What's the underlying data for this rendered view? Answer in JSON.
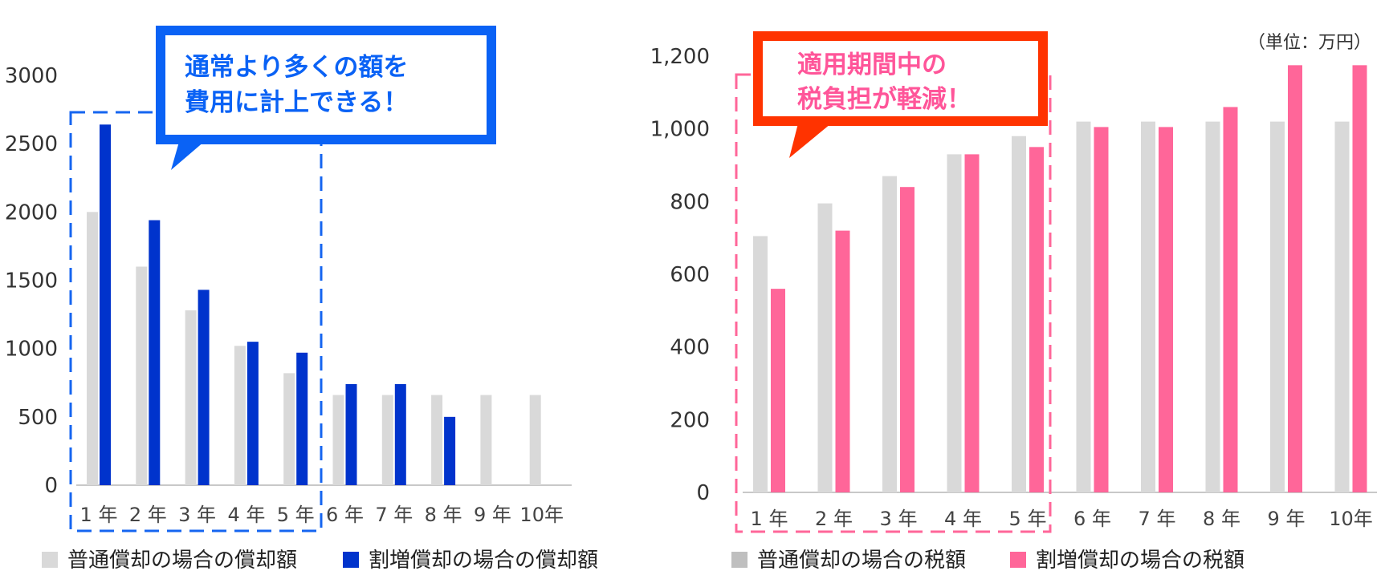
{
  "chart_data": [
    {
      "type": "bar",
      "categories": [
        "1 年",
        "2 年",
        "3 年",
        "4 年",
        "5 年",
        "6 年",
        "7 年",
        "8 年",
        "9 年",
        "10年"
      ],
      "series": [
        {
          "name": "普通償却の場合の償却額",
          "color": "#d9d9d9",
          "values": [
            2000,
            1600,
            1280,
            1020,
            820,
            660,
            660,
            660,
            660,
            660
          ]
        },
        {
          "name": "割増償却の場合の償却額",
          "color": "#0033cc",
          "values": [
            2640,
            1940,
            1430,
            1050,
            970,
            740,
            740,
            500,
            0,
            0
          ]
        }
      ],
      "ylim": [
        0,
        3000
      ],
      "yticks": [
        "0",
        "500",
        "1000",
        "1500",
        "2000",
        "2500",
        "3000"
      ],
      "ytick_values": [
        0,
        500,
        1000,
        1500,
        2000,
        2500,
        3000
      ],
      "grid": false,
      "legend_position": "bottom",
      "callout": {
        "lines": [
          "通常より多くの額を",
          "費用に計上できる！"
        ],
        "color": "#0a62f5"
      }
    },
    {
      "type": "bar",
      "categories": [
        "1 年",
        "2 年",
        "3 年",
        "4 年",
        "5 年",
        "6 年",
        "7 年",
        "8 年",
        "9 年",
        "10年"
      ],
      "series": [
        {
          "name": "普通償却の場合の税額",
          "color": "#d9d9d9",
          "values": [
            705,
            795,
            870,
            930,
            980,
            1020,
            1020,
            1020,
            1020,
            1020
          ]
        },
        {
          "name": "割増償却の場合の税額",
          "color": "#ff6699",
          "values": [
            560,
            720,
            840,
            930,
            950,
            1005,
            1005,
            1060,
            1175,
            1175
          ]
        }
      ],
      "ylim": [
        0,
        1200
      ],
      "yticks": [
        "0",
        "200",
        "400",
        "600",
        "800",
        "1,000",
        "1,200"
      ],
      "ytick_values": [
        0,
        200,
        400,
        600,
        800,
        1000,
        1200
      ],
      "grid": false,
      "legend_position": "bottom",
      "unit_label": "（単位：万円）",
      "callout": {
        "lines": [
          "適用期間中の",
          "税負担が軽減！"
        ],
        "color": "#ff3300",
        "text_color": "#ff5599"
      }
    }
  ]
}
